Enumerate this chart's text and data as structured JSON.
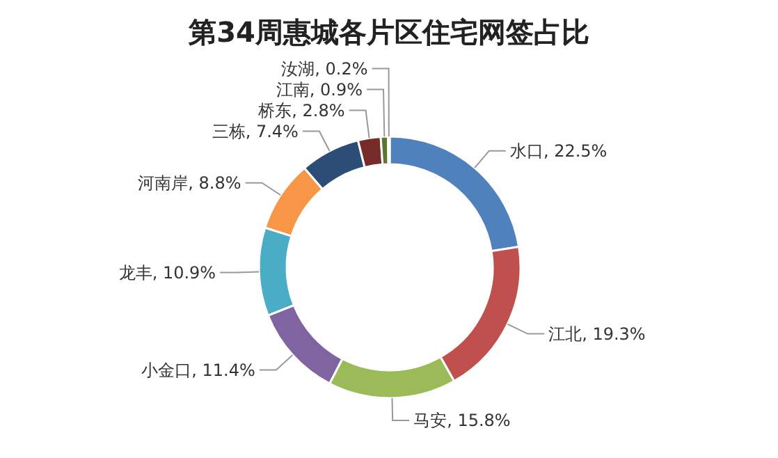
{
  "chart_data": {
    "type": "donut",
    "title": "第34周惠城各片区住宅网签占比",
    "categories": [
      "水口",
      "江北",
      "马安",
      "小金口",
      "龙丰",
      "河南岸",
      "三栋",
      "桥东",
      "江南",
      "汝湖"
    ],
    "values": [
      22.5,
      19.3,
      15.8,
      11.4,
      10.9,
      8.8,
      7.4,
      2.8,
      0.9,
      0.2
    ],
    "value_labels": [
      "22.5%",
      "19.3%",
      "15.8%",
      "11.4%",
      "10.9%",
      "8.8%",
      "7.4%",
      "2.8%",
      "0.9%",
      "0.2%"
    ],
    "colors": [
      "#4f81bd",
      "#c0504d",
      "#9bbb59",
      "#8064a2",
      "#4bacc6",
      "#f79646",
      "#2c4d75",
      "#772c2a",
      "#5f7530",
      "#4d3b62"
    ]
  }
}
